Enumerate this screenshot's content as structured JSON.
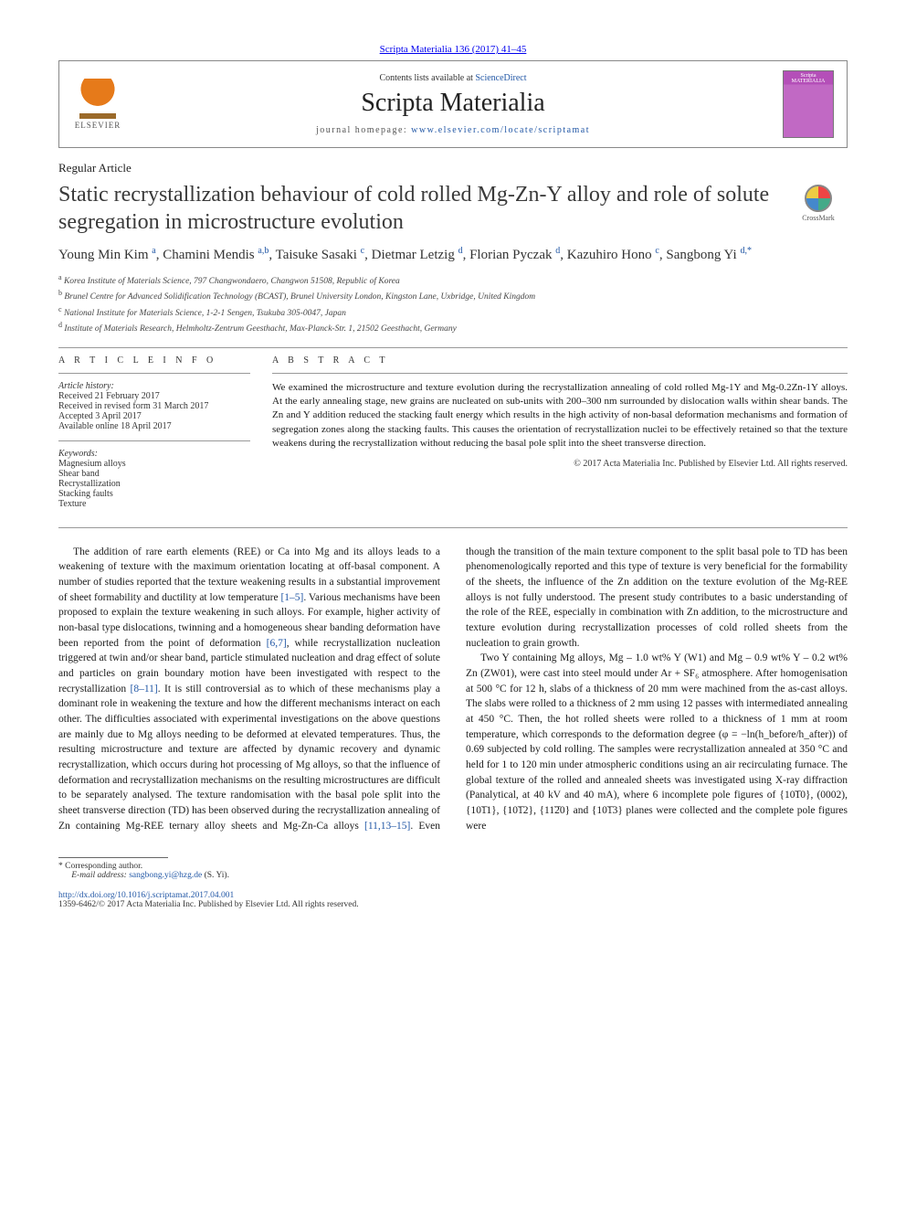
{
  "journal_ref": "Scripta Materialia 136 (2017) 41–45",
  "header": {
    "publisher_logo_text": "ELSEVIER",
    "contents_prefix": "Contents lists available at ",
    "contents_link": "ScienceDirect",
    "journal_name": "Scripta Materialia",
    "homepage_prefix": "journal homepage: ",
    "homepage_url": "www.elsevier.com/locate/scriptamat",
    "cover_label": "Scripta MATERIALIA"
  },
  "article_type": "Regular Article",
  "title": "Static recrystallization behaviour of cold rolled Mg-Zn-Y alloy and role of solute segregation in microstructure evolution",
  "crossmark_label": "CrossMark",
  "authors_html": "Young Min Kim <sup>a</sup>, Chamini Mendis <sup>a,b</sup>, Taisuke Sasaki <sup>c</sup>, Dietmar Letzig <sup>d</sup>, Florian Pyczak <sup>d</sup>, Kazuhiro Hono <sup>c</sup>, Sangbong Yi <sup>d,*</sup>",
  "affiliations": [
    {
      "key": "a",
      "text": "Korea Institute of Materials Science, 797 Changwondaero, Changwon 51508, Republic of Korea"
    },
    {
      "key": "b",
      "text": "Brunel Centre for Advanced Solidification Technology (BCAST), Brunel University London, Kingston Lane, Uxbridge, United Kingdom"
    },
    {
      "key": "c",
      "text": "National Institute for Materials Science, 1-2-1 Sengen, Tsukuba 305-0047, Japan"
    },
    {
      "key": "d",
      "text": "Institute of Materials Research, Helmholtz-Zentrum Geesthacht, Max-Planck-Str. 1, 21502 Geesthacht, Germany"
    }
  ],
  "article_info": {
    "heading": "A R T I C L E   I N F O",
    "history_label": "Article history:",
    "history": [
      "Received 21 February 2017",
      "Received in revised form 31 March 2017",
      "Accepted 3 April 2017",
      "Available online 18 April 2017"
    ],
    "keywords_label": "Keywords:",
    "keywords": [
      "Magnesium alloys",
      "Shear band",
      "Recrystallization",
      "Stacking faults",
      "Texture"
    ]
  },
  "abstract": {
    "heading": "A B S T R A C T",
    "text": "We examined the microstructure and texture evolution during the recrystallization annealing of cold rolled Mg-1Y and Mg-0.2Zn-1Y alloys. At the early annealing stage, new grains are nucleated on sub-units with 200–300 nm surrounded by dislocation walls within shear bands. The Zn and Y addition reduced the stacking fault energy which results in the high activity of non-basal deformation mechanisms and formation of segregation zones along the stacking faults. This causes the orientation of recrystallization nuclei to be effectively retained so that the texture weakens during the recrystallization without reducing the basal pole split into the sheet transverse direction.",
    "copyright": "© 2017 Acta Materialia Inc. Published by Elsevier Ltd. All rights reserved."
  },
  "body": {
    "para1": "The addition of rare earth elements (REE) or Ca into Mg and its alloys leads to a weakening of texture with the maximum orientation locating at off-basal component. A number of studies reported that the texture weakening results in a substantial improvement of sheet formability and ductility at low temperature ",
    "ref1": "[1–5]",
    "para1b": ". Various mechanisms have been proposed to explain the texture weakening in such alloys. For example, higher activity of non-basal type dislocations, twinning and a homogeneous shear banding deformation have been reported from the point of deformation ",
    "ref2": "[6,7]",
    "para1c": ", while recrystallization nucleation triggered at twin and/or shear band, particle stimulated nucleation and drag effect of solute and particles on grain boundary motion have been investigated with respect to the recrystallization ",
    "ref3": "[8–11]",
    "para1d": ". It is still controversial as to which of these mechanisms play a dominant role in weakening the texture and how the different mechanisms interact on each other. The difficulties associated with experimental investigations on the above questions are mainly due to Mg alloys needing to be deformed at elevated temperatures. Thus, the resulting microstructure and texture are affected by dynamic recovery and dynamic recrystallization, which occurs during hot processing of Mg alloys, so that the influence of deformation and recrystallization mechanisms on the resulting microstructures are difficult to be separately analysed. The texture randomisation with the basal pole split into the sheet",
    "para2a": "transverse direction (TD) has been observed during the recrystallization annealing of Zn containing Mg-REE ternary alloy sheets and Mg-Zn-Ca alloys ",
    "ref4": "[11,13–15]",
    "para2b": ". Even though the transition of the main texture component to the split basal pole to TD has been phenomenologically reported and this type of texture is very beneficial for the formability of the sheets, the influence of the Zn addition on the texture evolution of the Mg-REE alloys is not fully understood. The present study contributes to a basic understanding of the role of the REE, especially in combination with Zn addition, to the microstructure and texture evolution during recrystallization processes of cold rolled sheets from the nucleation to grain growth.",
    "para3": "Two Y containing Mg alloys, Mg – 1.0 wt% Y (W1) and Mg – 0.9 wt% Y – 0.2 wt% Zn (ZW01), were cast into steel mould under Ar + SF₆ atmosphere. After homogenisation at 500 °C for 12 h, slabs of a thickness of 20 mm were machined from the as-cast alloys. The slabs were rolled to a thickness of 2 mm using 12 passes with intermediated annealing at 450 °C. Then, the hot rolled sheets were rolled to a thickness of 1 mm at room temperature, which corresponds to the deformation degree (φ = −ln(h_before/h_after)) of 0.69 subjected by cold rolling. The samples were recrystallization annealed at 350 °C and held for 1 to 120 min under atmospheric conditions using an air recirculating furnace. The global texture of the rolled and annealed sheets was investigated using X-ray diffraction (Panalytical, at 40 kV and 40 mA), where 6 incomplete pole figures of {10͞10}, (0002), {10͞11}, {10͞12}, {11͞20} and {10͞13} planes were collected and the complete pole figures were"
  },
  "footnote": {
    "corresponding_label": "* Corresponding author.",
    "email_label": "E-mail address:",
    "email": "sangbong.yi@hzg.de",
    "email_suffix": "(S. Yi)."
  },
  "footer": {
    "doi": "http://dx.doi.org/10.1016/j.scriptamat.2017.04.001",
    "copyright": "1359-6462/© 2017 Acta Materialia Inc. Published by Elsevier Ltd. All rights reserved."
  },
  "colors": {
    "link": "#2358a6",
    "text": "#1a1a1a",
    "rule": "#999999"
  }
}
